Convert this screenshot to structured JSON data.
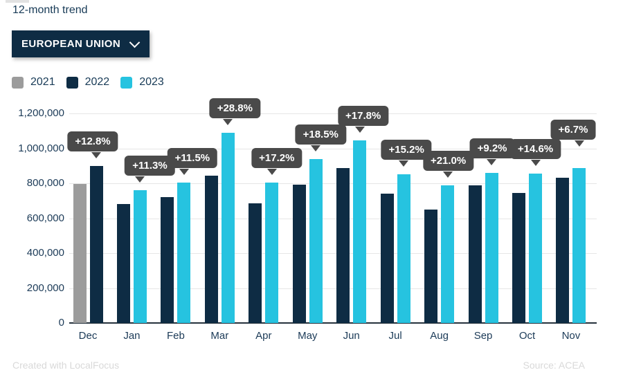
{
  "header": {
    "title": "12-month trend",
    "dropdown": {
      "label": "EUROPEAN UNION"
    },
    "legend": [
      {
        "year": "2021",
        "color": "#9c9c9c"
      },
      {
        "year": "2022",
        "color": "#0e2c44"
      },
      {
        "year": "2023",
        "color": "#26c3e0"
      }
    ]
  },
  "chart_data": {
    "type": "bar",
    "title": "12-month trend",
    "categories": [
      "Dec",
      "Jan",
      "Feb",
      "Mar",
      "Apr",
      "May",
      "Jun",
      "Jul",
      "Aug",
      "Sep",
      "Oct",
      "Nov"
    ],
    "series": [
      {
        "name": "2021",
        "color": "#9c9c9c",
        "values": [
          798000,
          null,
          null,
          null,
          null,
          null,
          null,
          null,
          null,
          null,
          null,
          null
        ]
      },
      {
        "name": "2022",
        "color": "#0e2c44",
        "values": [
          900000,
          683000,
          720000,
          845000,
          685000,
          792000,
          886000,
          739000,
          651000,
          788000,
          746000,
          830000
        ]
      },
      {
        "name": "2023",
        "color": "#26c3e0",
        "values": [
          null,
          760000,
          803000,
          1088000,
          803000,
          939000,
          1044000,
          851000,
          788000,
          861000,
          855000,
          886000
        ]
      }
    ],
    "labels": [
      "+12.8%",
      "+11.3%",
      "+11.5%",
      "+28.8%",
      "+17.2%",
      "+18.5%",
      "+17.8%",
      "+15.2%",
      "+21.0%",
      "+9.2%",
      "+14.6%",
      "+6.7%"
    ],
    "y_ticks": [
      "1,200,000",
      "1,000,000",
      "800,000",
      "600,000",
      "400,000",
      "200,000",
      "0"
    ],
    "ylim": [
      0,
      1200000
    ],
    "grid": true,
    "legend_position": "top-left"
  },
  "footer": {
    "credit": "Created with LocalFocus",
    "source": "Source: ACEA"
  }
}
